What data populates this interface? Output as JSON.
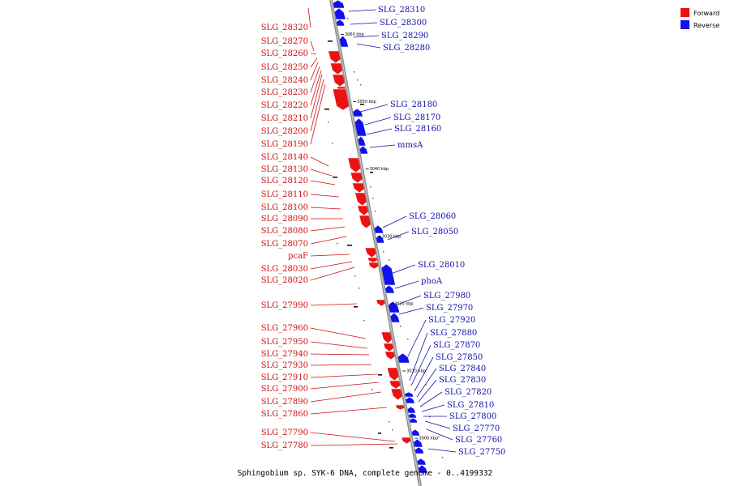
{
  "caption": "Sphingobium sp. SYK-6 DNA, complete genome - 0..4199332",
  "colors": {
    "forward": "#ee1111",
    "reverse": "#1111ee",
    "forward_label": "#cc1111",
    "reverse_label": "#1111aa",
    "backbone": "#909090"
  },
  "legend": [
    {
      "label": "Forward",
      "color": "#ee1111"
    },
    {
      "label": "Reverse",
      "color": "#1111ee"
    }
  ],
  "kbp_marks": [
    {
      "label": "3060 kbp",
      "kbp": 3060
    },
    {
      "label": "3050 kbp",
      "kbp": 3050
    },
    {
      "label": "3040 kbp",
      "kbp": 3040
    },
    {
      "label": "3030 kbp",
      "kbp": 3030
    },
    {
      "label": "3020 kbp",
      "kbp": 3020
    },
    {
      "label": "3010 kbp",
      "kbp": 3010
    },
    {
      "label": "3000 kbp",
      "kbp": 3000
    }
  ],
  "forward_genes": [
    {
      "label": "SLG_28320"
    },
    {
      "label": "SLG_28270"
    },
    {
      "label": "SLG_28260"
    },
    {
      "label": "SLG_28250"
    },
    {
      "label": "SLG_28240"
    },
    {
      "label": "SLG_28230"
    },
    {
      "label": "SLG_28220"
    },
    {
      "label": "SLG_28210"
    },
    {
      "label": "SLG_28200"
    },
    {
      "label": "SLG_28190"
    },
    {
      "label": "SLG_28140"
    },
    {
      "label": "SLG_28130"
    },
    {
      "label": "SLG_28120"
    },
    {
      "label": "SLG_28110"
    },
    {
      "label": "SLG_28100"
    },
    {
      "label": "SLG_28090"
    },
    {
      "label": "SLG_28080"
    },
    {
      "label": "SLG_28070"
    },
    {
      "label": "pcaF"
    },
    {
      "label": "SLG_28030"
    },
    {
      "label": "SLG_28020"
    },
    {
      "label": "SLG_27990"
    },
    {
      "label": "SLG_27960"
    },
    {
      "label": "SLG_27950"
    },
    {
      "label": "SLG_27940"
    },
    {
      "label": "SLG_27930"
    },
    {
      "label": "SLG_27910"
    },
    {
      "label": "SLG_27900"
    },
    {
      "label": "SLG_27890"
    },
    {
      "label": "SLG_27860"
    },
    {
      "label": "SLG_27790"
    },
    {
      "label": "SLG_27780"
    }
  ],
  "reverse_genes": [
    {
      "label": "SLG_28310"
    },
    {
      "label": "SLG_28300"
    },
    {
      "label": "SLG_28290"
    },
    {
      "label": "SLG_28280"
    },
    {
      "label": "SLG_28180"
    },
    {
      "label": "SLG_28170"
    },
    {
      "label": "SLG_28160"
    },
    {
      "label": "mmsA"
    },
    {
      "label": "SLG_28060"
    },
    {
      "label": "SLG_28050"
    },
    {
      "label": "SLG_28010"
    },
    {
      "label": "phoA"
    },
    {
      "label": "SLG_27980"
    },
    {
      "label": "SLG_27970"
    },
    {
      "label": "SLG_27920"
    },
    {
      "label": "SLG_27880"
    },
    {
      "label": "SLG_27870"
    },
    {
      "label": "SLG_27850"
    },
    {
      "label": "SLG_27840"
    },
    {
      "label": "SLG_27830"
    },
    {
      "label": "SLG_27820"
    },
    {
      "label": "SLG_27810"
    },
    {
      "label": "SLG_27800"
    },
    {
      "label": "SLG_27770"
    },
    {
      "label": "SLG_27760"
    },
    {
      "label": "SLG_27750"
    }
  ]
}
